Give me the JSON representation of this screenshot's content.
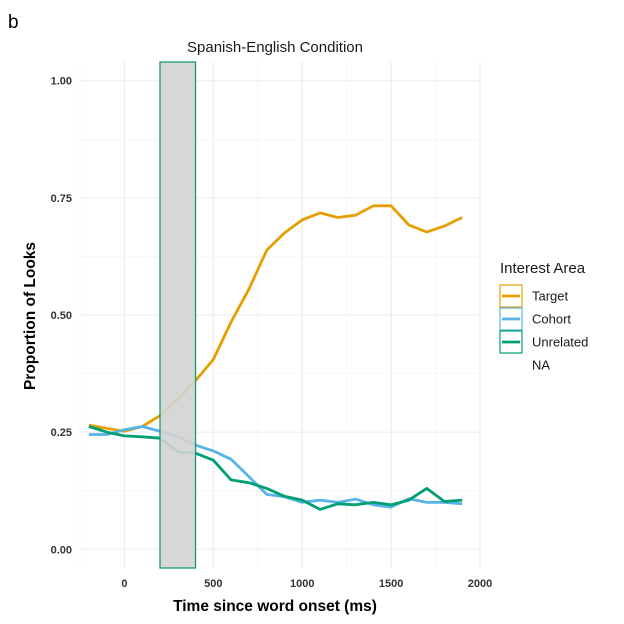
{
  "panel_tag": "b",
  "chart_data": {
    "type": "line",
    "title": "Spanish-English Condition",
    "xlabel": "Time since word onset (ms)",
    "ylabel": "Proportion of Looks",
    "xlim": [
      -250,
      2000
    ],
    "ylim": [
      -0.04,
      1.04
    ],
    "x_ticks": [
      0,
      500,
      1000,
      1500,
      2000
    ],
    "x_tick_labels": [
      "0",
      "500",
      "1000",
      "1500",
      "2000"
    ],
    "y_ticks": [
      0,
      0.25,
      0.5,
      0.75,
      1.0
    ],
    "y_tick_labels": [
      "0.00",
      "0.25",
      "0.50",
      "0.75",
      "1.00"
    ],
    "grid": true,
    "shaded_region": {
      "x0": 200,
      "x1": 400,
      "fill": "#d3d3d3",
      "stroke": "#1a9970"
    },
    "legend": {
      "title": "Interest Area",
      "position": "right",
      "entries": [
        "Target",
        "Cohort",
        "Unrelated",
        "NA"
      ]
    },
    "x": [
      -200,
      -100,
      0,
      100,
      200,
      300,
      400,
      500,
      600,
      700,
      800,
      900,
      1000,
      1100,
      1200,
      1300,
      1400,
      1500,
      1600,
      1700,
      1800,
      1900
    ],
    "series": [
      {
        "name": "Target",
        "color": "#E69F00",
        "values": [
          0.265,
          0.258,
          0.252,
          0.262,
          0.285,
          0.32,
          0.36,
          0.405,
          0.485,
          0.555,
          0.638,
          0.675,
          0.703,
          0.718,
          0.708,
          0.713,
          0.733,
          0.733,
          0.692,
          0.677,
          0.69,
          0.708
        ]
      },
      {
        "name": "Cohort",
        "color": "#56B4E9",
        "values": [
          0.245,
          0.245,
          0.255,
          0.262,
          0.252,
          0.24,
          0.222,
          0.21,
          0.192,
          0.155,
          0.117,
          0.112,
          0.1,
          0.105,
          0.1,
          0.107,
          0.095,
          0.09,
          0.108,
          0.1,
          0.1,
          0.097
        ]
      },
      {
        "name": "Unrelated",
        "color": "#009E73",
        "values": [
          0.262,
          0.25,
          0.242,
          0.24,
          0.237,
          0.208,
          0.205,
          0.19,
          0.148,
          0.142,
          0.13,
          0.113,
          0.105,
          0.085,
          0.097,
          0.095,
          0.1,
          0.095,
          0.105,
          0.13,
          0.102,
          0.105
        ]
      }
    ]
  }
}
